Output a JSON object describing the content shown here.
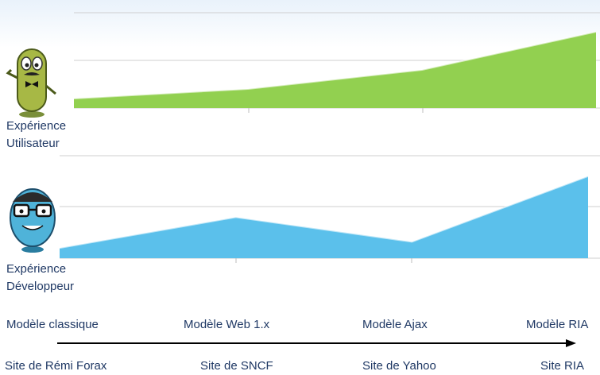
{
  "chart_data": [
    {
      "type": "area",
      "ylabel": [
        "Expérience",
        "Utilisateur"
      ],
      "color": "#92d050",
      "categories": [
        "Modèle classique",
        "Modèle Web 1.x",
        "Modèle Ajax",
        "Modèle RIA"
      ],
      "values": [
        1.0,
        2.0,
        4.0,
        8.0
      ],
      "ylim": [
        0,
        10
      ],
      "grid": true
    },
    {
      "type": "area",
      "ylabel": [
        "Expérience",
        "Développeur"
      ],
      "color": "#5bc0eb",
      "categories": [
        "Modèle classique",
        "Modèle Web 1.x",
        "Modèle Ajax",
        "Modèle RIA"
      ],
      "values": [
        1.0,
        4.0,
        1.6,
        8.0
      ],
      "ylim": [
        0,
        10
      ],
      "grid": true
    }
  ],
  "axis_line_color": "#000000",
  "models": [
    "Modèle classique",
    "Modèle Web 1.x",
    "Modèle Ajax",
    "Modèle RIA"
  ],
  "examples": [
    "Site de Rémi Forax",
    "Site de SNCF",
    "Site de Yahoo",
    "Site RIA"
  ],
  "avatars": [
    {
      "name": "green-character-icon"
    },
    {
      "name": "blue-character-icon"
    }
  ]
}
